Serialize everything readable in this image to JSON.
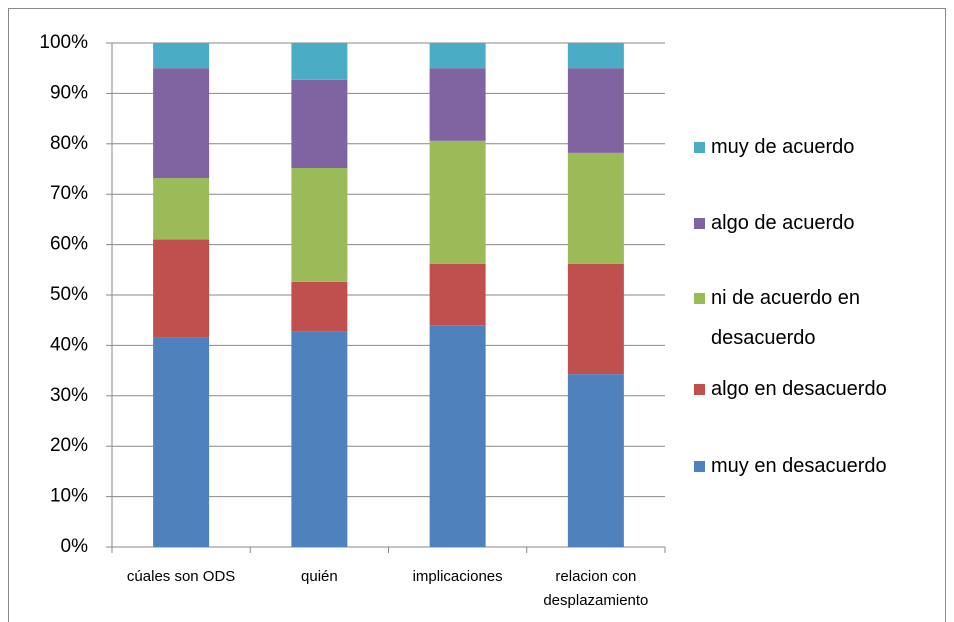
{
  "chart_data": {
    "type": "stacked_bar",
    "categories": [
      "cúales son ODS",
      "quién",
      "implicaciones",
      "relacion con desplazamiento"
    ],
    "series": [
      {
        "name": "muy en desacuerdo",
        "color": "#4f81bd",
        "values": [
          41.5,
          42.7,
          44.0,
          34.3
        ]
      },
      {
        "name": "algo en desacuerdo",
        "color": "#c0504d",
        "values": [
          19.5,
          9.9,
          12.2,
          21.9
        ]
      },
      {
        "name": "ni de acuerdo en desacuerdo",
        "color": "#9bbb59",
        "values": [
          12.2,
          22.6,
          24.4,
          22.0
        ]
      },
      {
        "name": "algo de acuerdo",
        "color": "#8064a2",
        "values": [
          21.8,
          17.5,
          14.4,
          16.8
        ]
      },
      {
        "name": "muy de acuerdo",
        "color": "#4bacc6",
        "values": [
          5.0,
          7.3,
          5.0,
          5.0
        ]
      }
    ],
    "ylim": [
      0,
      100
    ],
    "yticks": [
      {
        "value": 0,
        "label": "0%"
      },
      {
        "value": 10,
        "label": "10%"
      },
      {
        "value": 20,
        "label": "20%"
      },
      {
        "value": 30,
        "label": "30%"
      },
      {
        "value": 40,
        "label": "40%"
      },
      {
        "value": 50,
        "label": "50%"
      },
      {
        "value": 60,
        "label": "60%"
      },
      {
        "value": 70,
        "label": "70%"
      },
      {
        "value": 80,
        "label": "80%"
      },
      {
        "value": 90,
        "label": "90%"
      },
      {
        "value": 100,
        "label": "100%"
      }
    ],
    "grid": true,
    "legend": "right"
  }
}
